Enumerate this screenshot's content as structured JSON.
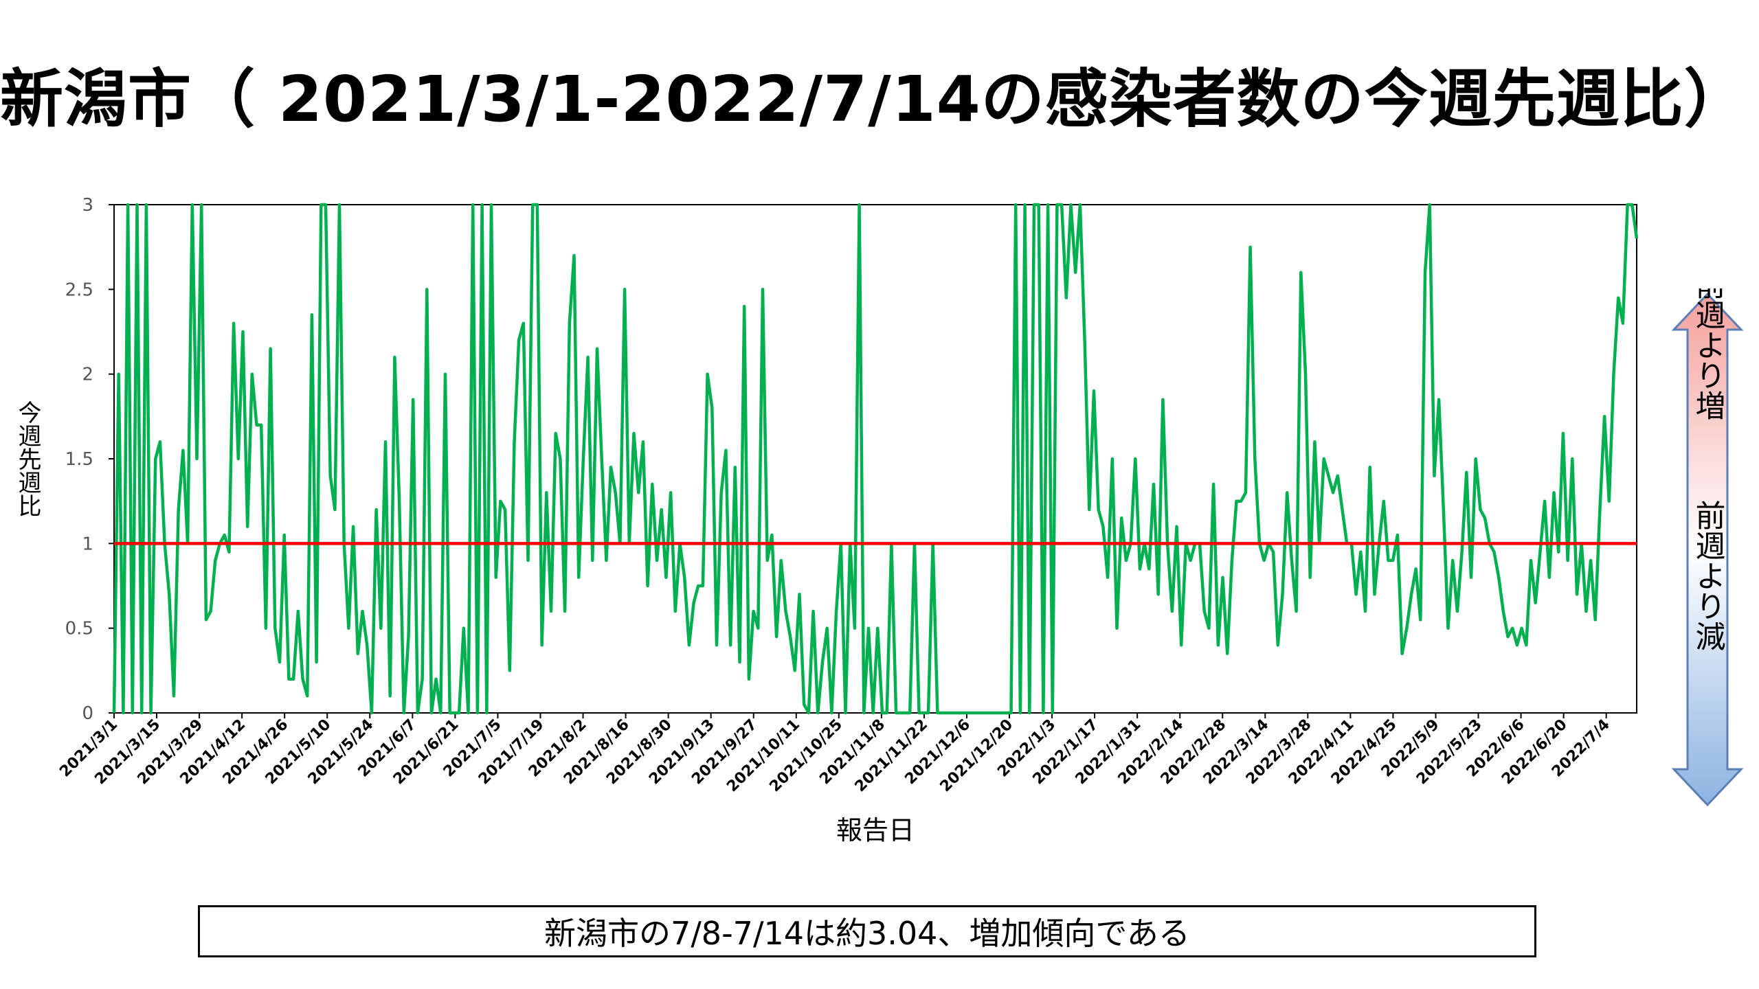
{
  "title": "新潟市（ 2021/3/1-2022/7/14の感染者数の今週先週比）",
  "legend_side": {
    "up_label": "前週より増",
    "down_label": "前週より減",
    "up_color": "#f4a09c",
    "down_color": "#8db3e2"
  },
  "note": "新潟市の7/8-7/14は約3.04、増加傾向である",
  "colors": {
    "line": "#00b050",
    "reference": "#ff0000"
  },
  "chart_data": {
    "type": "line",
    "xlabel": "報告日",
    "ylabel": "今週先週比",
    "ylim": [
      0,
      3
    ],
    "yticks": [
      "0",
      "0.5",
      "1",
      "1.5",
      "2",
      "2.5",
      "3"
    ],
    "xticks": [
      "2021/3/1",
      "2021/3/15",
      "2021/3/29",
      "2021/4/12",
      "2021/4/26",
      "2021/5/10",
      "2021/5/24",
      "2021/6/7",
      "2021/6/21",
      "2021/7/5",
      "2021/7/19",
      "2021/8/2",
      "2021/8/16",
      "2021/8/30",
      "2021/9/13",
      "2021/9/27",
      "2021/10/11",
      "2021/10/25",
      "2021/11/8",
      "2021/11/22",
      "2021/12/6",
      "2021/12/20",
      "2022/1/3",
      "2022/1/17",
      "2022/1/31",
      "2022/2/14",
      "2022/2/28",
      "2022/3/14",
      "2022/3/28",
      "2022/4/11",
      "2022/4/25",
      "2022/5/9",
      "2022/5/23",
      "2022/6/6",
      "2022/6/20",
      "2022/7/4"
    ],
    "reference_line": 1,
    "series": [
      {
        "start_date": "2021/3/1",
        "end_date": "2022/7/14",
        "values": [
          0,
          2.0,
          0,
          3,
          0,
          3,
          0,
          3,
          0,
          1.5,
          1.6,
          1.0,
          0.7,
          0.1,
          1.2,
          1.55,
          1.0,
          3,
          1.5,
          3,
          0.55,
          0.6,
          0.9,
          1.0,
          1.05,
          0.95,
          2.3,
          1.5,
          2.25,
          1.1,
          2.0,
          1.7,
          1.7,
          0.5,
          2.15,
          0.5,
          0.3,
          1.05,
          0.2,
          0.2,
          0.6,
          0.2,
          0.1,
          2.35,
          0.3,
          3,
          3,
          1.4,
          1.2,
          3,
          1.0,
          0.5,
          1.1,
          0.35,
          0.6,
          0.4,
          0,
          1.2,
          0.5,
          1.6,
          0.1,
          2.1,
          1.25,
          0,
          0.45,
          1.85,
          0,
          0.2,
          2.5,
          0,
          0.2,
          0,
          2.0,
          0,
          0,
          0,
          0.5,
          0,
          3,
          0,
          3,
          0,
          3,
          0.8,
          1.25,
          1.2,
          0.25,
          1.6,
          2.2,
          2.3,
          0.9,
          3,
          3,
          0.4,
          1.3,
          0.6,
          1.65,
          1.5,
          0.6,
          2.3,
          2.7,
          0.8,
          1.5,
          2.1,
          0.9,
          2.15,
          1.5,
          0.9,
          1.45,
          1.3,
          1.0,
          2.5,
          1.0,
          1.65,
          1.3,
          1.6,
          0.75,
          1.35,
          0.9,
          1.2,
          0.8,
          1.3,
          0.6,
          1.0,
          0.8,
          0.4,
          0.65,
          0.75,
          0.75,
          2.0,
          1.8,
          0.4,
          1.3,
          1.55,
          0.4,
          1.45,
          0.3,
          2.4,
          0.2,
          0.6,
          0.5,
          2.5,
          0.9,
          1.05,
          0.45,
          0.9,
          0.6,
          0.45,
          0.25,
          0.7,
          0.05,
          0,
          0.6,
          0,
          0.3,
          0.5,
          0,
          0.6,
          1.0,
          0,
          1.0,
          0.5,
          3,
          0,
          0.5,
          0,
          0.5,
          0,
          0,
          1.0,
          0,
          0,
          0,
          0,
          1.0,
          0,
          0,
          0,
          1.0,
          0,
          0,
          0,
          0,
          0,
          0,
          0,
          0,
          0,
          0,
          0,
          0,
          0,
          0,
          0,
          0,
          0,
          3,
          0,
          3,
          0,
          3,
          3,
          0,
          3,
          0,
          3,
          3,
          2.45,
          3,
          2.6,
          3,
          2.2,
          1.2,
          1.9,
          1.2,
          1.1,
          0.8,
          1.5,
          0.5,
          1.15,
          0.9,
          1.0,
          1.5,
          0.85,
          1.0,
          0.85,
          1.35,
          0.7,
          1.85,
          1.0,
          0.6,
          1.1,
          0.4,
          1.0,
          0.9,
          1.0,
          1.0,
          0.6,
          0.5,
          1.35,
          0.4,
          0.8,
          0.35,
          0.9,
          1.25,
          1.25,
          1.3,
          2.75,
          1.5,
          1.0,
          0.9,
          1.0,
          0.95,
          0.4,
          0.7,
          1.3,
          0.9,
          0.6,
          2.6,
          2.0,
          0.8,
          1.6,
          1.0,
          1.5,
          1.4,
          1.3,
          1.4,
          1.2,
          1.0,
          1.0,
          0.7,
          0.95,
          0.6,
          1.45,
          0.7,
          1.0,
          1.25,
          0.9,
          0.9,
          1.05,
          0.35,
          0.5,
          0.7,
          0.85,
          0.55,
          2.6,
          3,
          1.4,
          1.85,
          1.2,
          0.5,
          0.9,
          0.6,
          0.95,
          1.42,
          0.8,
          1.5,
          1.2,
          1.15,
          1.0,
          0.95,
          0.8,
          0.6,
          0.45,
          0.5,
          0.4,
          0.5,
          0.4,
          0.9,
          0.65,
          0.95,
          1.25,
          0.8,
          1.3,
          0.95,
          1.65,
          0.9,
          1.5,
          0.7,
          1.0,
          0.6,
          0.9,
          0.55,
          1.2,
          1.75,
          1.25,
          2.0,
          2.45,
          2.3,
          3,
          3,
          2.8
        ]
      }
    ]
  }
}
